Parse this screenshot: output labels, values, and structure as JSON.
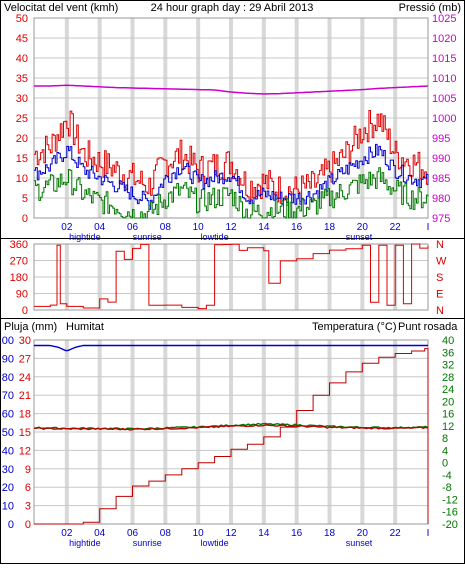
{
  "title": "24 hour graph day : 29 Abril 2013",
  "colors": {
    "red": "#dd0000",
    "green": "#007700",
    "blue": "#0000cc",
    "magenta": "#cc00cc",
    "darkred": "#bb0000",
    "grid": "#c8c8c8",
    "vband": "#d8d8d8"
  },
  "chart_data": [
    {
      "type": "line",
      "label_left": "Velocitat del vent (kmh)",
      "label_right": "Pressió (mb)",
      "x_ticks": [
        "02",
        "04",
        "06",
        "08",
        "10",
        "12",
        "14",
        "16",
        "18",
        "20",
        "22",
        "I"
      ],
      "events": [
        "hightide",
        "sunrise",
        "lowtide",
        "sunset"
      ],
      "y_left_ticks": [
        "0",
        "5",
        "10",
        "15",
        "20",
        "25",
        "30",
        "35",
        "40",
        "45",
        "50"
      ],
      "ylim_left": [
        0,
        50
      ],
      "y_right_ticks": [
        "975",
        "980",
        "985",
        "990",
        "995",
        "1000",
        "1005",
        "1010",
        "1015",
        "1020",
        "1025"
      ],
      "ylim_right": [
        975,
        1025
      ],
      "x": [
        0,
        1,
        2,
        3,
        4,
        5,
        6,
        7,
        8,
        9,
        10,
        11,
        12,
        13,
        14,
        15,
        16,
        17,
        18,
        19,
        20,
        21,
        22,
        23,
        24
      ],
      "series": [
        {
          "name": "gust",
          "color": "#dd0000",
          "axis": "left",
          "values": [
            16,
            18,
            25,
            16,
            14,
            12,
            10,
            8,
            14,
            16,
            12,
            13,
            14,
            8,
            9,
            7,
            7,
            8,
            12,
            16,
            22,
            25,
            16,
            14,
            12
          ]
        },
        {
          "name": "average",
          "color": "#0000cc",
          "axis": "left",
          "values": [
            11,
            13,
            17,
            12,
            10,
            8,
            6,
            4,
            10,
            13,
            9,
            10,
            11,
            5,
            6,
            5,
            5,
            6,
            9,
            12,
            15,
            17,
            12,
            10,
            9
          ]
        },
        {
          "name": "min",
          "color": "#007700",
          "axis": "left",
          "values": [
            7,
            8,
            10,
            6,
            4,
            3,
            1,
            1,
            5,
            7,
            4,
            5,
            6,
            1,
            2,
            2,
            2,
            3,
            5,
            7,
            9,
            10,
            7,
            5,
            5
          ]
        },
        {
          "name": "pressure",
          "color": "#cc00cc",
          "axis": "right",
          "values": [
            1008,
            1008,
            1008.2,
            1008,
            1007.8,
            1007.6,
            1007.5,
            1007.4,
            1007.3,
            1007.2,
            1007.1,
            1007,
            1006.5,
            1006.2,
            1006,
            1006.1,
            1006.3,
            1006.5,
            1006.7,
            1006.9,
            1007.1,
            1007.4,
            1007.6,
            1007.8,
            1008
          ]
        }
      ]
    },
    {
      "type": "line",
      "label_left_ticks": [
        "0",
        "90",
        "180",
        "270",
        "360"
      ],
      "label_right_ticks": [
        "N",
        "E",
        "S",
        "W",
        "N"
      ],
      "ylim": [
        0,
        360
      ],
      "series": [
        {
          "name": "wind direction",
          "color": "#dd0000",
          "x": [
            0,
            1,
            1.4,
            1.6,
            2,
            3,
            4,
            4.5,
            5,
            5.5,
            6,
            6.5,
            7,
            8,
            9,
            10,
            10.5,
            11,
            11.5,
            12,
            12.5,
            13,
            14,
            14.3,
            15,
            16,
            17,
            18,
            19,
            20,
            20.5,
            21,
            21.5,
            22,
            22.5,
            23,
            23.5,
            24
          ],
          "values": [
            20,
            30,
            360,
            30,
            20,
            15,
            60,
            40,
            320,
            280,
            340,
            360,
            30,
            25,
            20,
            15,
            30,
            360,
            350,
            360,
            330,
            340,
            320,
            150,
            260,
            280,
            300,
            320,
            340,
            350,
            40,
            360,
            20,
            350,
            30,
            360,
            340,
            350
          ]
        }
      ]
    },
    {
      "type": "line",
      "label_left_red": "Pluja (mm)",
      "label_left_blue": "Humitat",
      "label_right_green": "Temperatura (°C)",
      "label_right_red": "Punt rosada",
      "rain_ticks": [
        "0",
        "3",
        "6",
        "9",
        "12",
        "15",
        "18",
        "21",
        "24",
        "27",
        "30"
      ],
      "ylim_rain": [
        0,
        30
      ],
      "humidity_ticks": [
        "0",
        "10",
        "20",
        "30",
        "40",
        "50",
        "60",
        "70",
        "80",
        "90",
        "100"
      ],
      "ylim_humidity": [
        0,
        100
      ],
      "temp_ticks": [
        "-20",
        "-16",
        "-12",
        "-8",
        "-4",
        "0",
        "4",
        "8",
        "12",
        "16",
        "20",
        "24",
        "28",
        "32",
        "36",
        "40"
      ],
      "ylim_temp": [
        -20,
        40
      ],
      "series": [
        {
          "name": "rain",
          "color": "#bb0000",
          "x": [
            0,
            1,
            2,
            3,
            4,
            5,
            6,
            7,
            8,
            9,
            10,
            11,
            12,
            13,
            14,
            15,
            16,
            17,
            18,
            19,
            20,
            21,
            22,
            23,
            23.8,
            24
          ],
          "values": [
            0,
            0,
            0,
            0.3,
            2.5,
            4.5,
            6.2,
            7.0,
            8.0,
            9.0,
            10.0,
            11.0,
            12.2,
            13.0,
            14.2,
            15.8,
            18.5,
            21.0,
            23.0,
            24.8,
            26.2,
            27.2,
            27.8,
            28.2,
            28.6,
            0
          ]
        },
        {
          "name": "humidity",
          "color": "#0000cc",
          "x": [
            0,
            1,
            1.5,
            2,
            2.5,
            3,
            24
          ],
          "values": [
            97,
            97,
            96,
            94,
            96,
            97,
            97
          ]
        },
        {
          "name": "temperature",
          "color": "#007700",
          "x": [
            0,
            2,
            4,
            6,
            8,
            10,
            12,
            14,
            16,
            18,
            20,
            22,
            24
          ],
          "values": [
            11.4,
            11.2,
            11.2,
            11.0,
            11.3,
            11.6,
            12.2,
            12.6,
            12.3,
            11.8,
            11.5,
            11.4,
            11.6
          ]
        },
        {
          "name": "dew point",
          "color": "#bb0000",
          "x": [
            0,
            2,
            4,
            6,
            8,
            10,
            12,
            14,
            16,
            18,
            20,
            22,
            24
          ],
          "values": [
            11.2,
            11.0,
            11.0,
            10.9,
            11.1,
            11.4,
            11.9,
            12.2,
            11.9,
            11.5,
            11.3,
            11.2,
            11.4
          ]
        }
      ]
    }
  ]
}
